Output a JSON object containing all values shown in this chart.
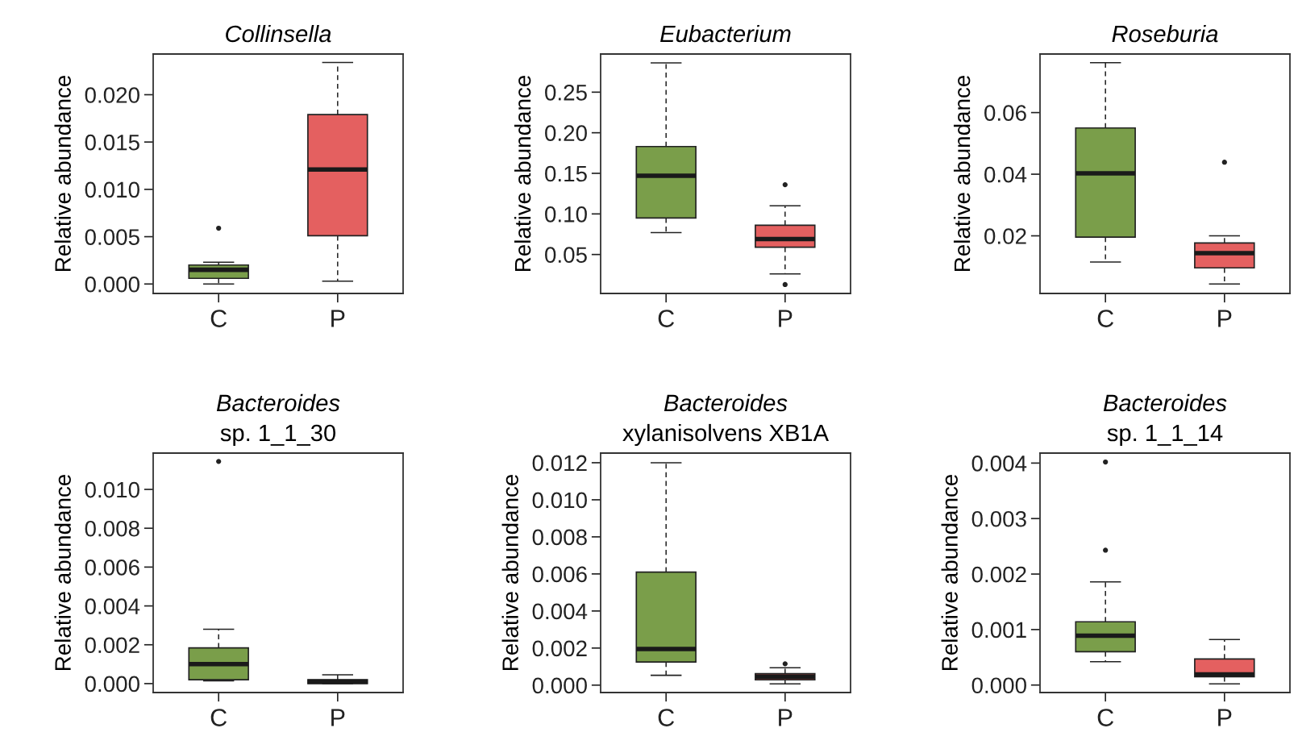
{
  "chart_data": [
    {
      "type": "box",
      "title": "Collinsella",
      "ylabel": "Relative abundance",
      "categories": [
        "C",
        "P"
      ],
      "colors": [
        "#7a9e4a",
        "#e46060"
      ],
      "ylim": [
        -0.001,
        0.0243
      ],
      "yticks": [
        {
          "value": 0,
          "label": "0.000"
        },
        {
          "value": 0.005,
          "label": "0.005"
        },
        {
          "value": 0.01,
          "label": "0.010"
        },
        {
          "value": 0.015,
          "label": "0.015"
        },
        {
          "value": 0.02,
          "label": "0.020"
        }
      ],
      "boxes": [
        {
          "low": 0,
          "q1": 0.0006,
          "median": 0.0015,
          "q3": 0.002,
          "high": 0.0023,
          "outliers": [
            0.0059
          ]
        },
        {
          "low": 0.0003,
          "q1": 0.0051,
          "median": 0.0121,
          "q3": 0.0179,
          "high": 0.0234
        }
      ]
    },
    {
      "type": "box",
      "title": "Eubacterium",
      "ylabel": "Relative abundance",
      "categories": [
        "C",
        "P"
      ],
      "colors": [
        "#7a9e4a",
        "#e46060"
      ],
      "ylim": [
        0.002,
        0.297
      ],
      "yticks": [
        {
          "value": 0.05,
          "label": "0.05"
        },
        {
          "value": 0.1,
          "label": "0.10"
        },
        {
          "value": 0.15,
          "label": "0.15"
        },
        {
          "value": 0.2,
          "label": "0.20"
        },
        {
          "value": 0.25,
          "label": "0.25"
        }
      ],
      "boxes": [
        {
          "low": 0.077,
          "q1": 0.095,
          "median": 0.147,
          "q3": 0.183,
          "high": 0.286
        },
        {
          "low": 0.026,
          "q1": 0.059,
          "median": 0.069,
          "q3": 0.086,
          "high": 0.11,
          "outliers": [
            0.136,
            0.013
          ]
        }
      ]
    },
    {
      "type": "box",
      "title": "Roseburia",
      "ylabel": "Relative abundance",
      "categories": [
        "C",
        "P"
      ],
      "colors": [
        "#7a9e4a",
        "#e46060"
      ],
      "ylim": [
        0.0013,
        0.079
      ],
      "yticks": [
        0.02,
        0.04,
        0.06
      ],
      "boxes": [
        {
          "low": 0.0115,
          "q1": 0.0196,
          "median": 0.0403,
          "q3": 0.055,
          "high": 0.0762
        },
        {
          "low": 0.0044,
          "q1": 0.0096,
          "median": 0.0144,
          "q3": 0.0177,
          "high": 0.02,
          "outliers": [
            0.0439
          ]
        }
      ]
    },
    {
      "type": "box",
      "title": "Bacteroides\nsp. 1_1_30",
      "ylabel": "Relative abundance",
      "categories": [
        "C",
        "P"
      ],
      "colors": [
        "#7a9e4a",
        "#e46060"
      ],
      "ylim": [
        -0.00046,
        0.01187
      ],
      "yticks": [
        {
          "value": 0,
          "label": "0.000"
        },
        {
          "value": 0.002,
          "label": "0.002"
        },
        {
          "value": 0.004,
          "label": "0.004"
        },
        {
          "value": 0.006,
          "label": "0.006"
        },
        {
          "value": 0.008,
          "label": "0.008"
        },
        {
          "value": 0.01,
          "label": "0.010"
        }
      ],
      "boxes": [
        {
          "low": 0.00014,
          "q1": 0.0002,
          "median": 0.001,
          "q3": 0.00184,
          "high": 0.0028,
          "outliers": [
            0.01144
          ]
        },
        {
          "low": 0,
          "q1": 0,
          "median": 0.0001,
          "q3": 0.0002,
          "high": 0.00045
        }
      ]
    },
    {
      "type": "box",
      "title": "Bacteroides\nxylanisolvens XB1A",
      "ylabel": "Relative abundance",
      "categories": [
        "C",
        "P"
      ],
      "colors": [
        "#7a9e4a",
        "#e46060"
      ],
      "ylim": [
        -0.0004,
        0.01252
      ],
      "yticks": [
        {
          "value": 0,
          "label": "0.000"
        },
        {
          "value": 0.002,
          "label": "0.002"
        },
        {
          "value": 0.004,
          "label": "0.004"
        },
        {
          "value": 0.006,
          "label": "0.006"
        },
        {
          "value": 0.008,
          "label": "0.008"
        },
        {
          "value": 0.01,
          "label": "0.010"
        },
        {
          "value": 0.012,
          "label": "0.012"
        }
      ],
      "boxes": [
        {
          "low": 0.00053,
          "q1": 0.00125,
          "median": 0.00195,
          "q3": 0.0061,
          "high": 0.012
        },
        {
          "low": 7e-05,
          "q1": 0.00029,
          "median": 0.00046,
          "q3": 0.00062,
          "high": 0.00094,
          "outliers": [
            0.00115
          ]
        }
      ]
    },
    {
      "type": "box",
      "title": "Bacteroides\nsp. 1_1_14",
      "ylabel": "Relative abundance",
      "categories": [
        "C",
        "P"
      ],
      "colors": [
        "#7a9e4a",
        "#e46060"
      ],
      "ylim": [
        -0.000135,
        0.00418
      ],
      "yticks": [
        {
          "value": 0,
          "label": "0.000"
        },
        {
          "value": 0.001,
          "label": "0.001"
        },
        {
          "value": 0.002,
          "label": "0.002"
        },
        {
          "value": 0.003,
          "label": "0.003"
        },
        {
          "value": 0.004,
          "label": "0.004"
        }
      ],
      "boxes": [
        {
          "low": 0.00042,
          "q1": 0.0006,
          "median": 0.00089,
          "q3": 0.00114,
          "high": 0.00186,
          "outliers": [
            0.00402,
            0.00243
          ]
        },
        {
          "low": 2e-05,
          "q1": 0.00015,
          "median": 0.00019,
          "q3": 0.00047,
          "high": 0.00082
        }
      ]
    }
  ]
}
